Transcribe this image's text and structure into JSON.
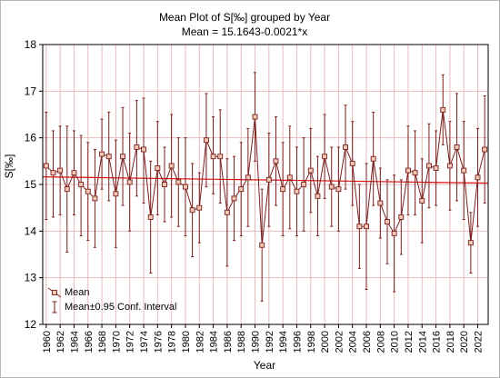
{
  "chart_data": {
    "type": "line",
    "title": "Mean Plot of S[‰] grouped by  Year",
    "subtitle": "Mean = 15.1643-0.0021*x",
    "xlabel": "Year",
    "ylabel": "S[‰]",
    "ylim": [
      12,
      18
    ],
    "yticks": [
      12,
      13,
      14,
      15,
      16,
      17,
      18
    ],
    "grid": true,
    "legend_placement": "bottom-left",
    "x_tick_labels": [
      "1960",
      "1962",
      "1964",
      "1966",
      "1968",
      "1970",
      "1972",
      "1974",
      "1976",
      "1978",
      "1980",
      "1982",
      "1984",
      "1986",
      "1988",
      "1990",
      "1992",
      "1994",
      "1996",
      "1998",
      "2000",
      "2002",
      "2004",
      "2006",
      "2008",
      "2010",
      "2012",
      "2014",
      "2016",
      "2018",
      "2020",
      "2022"
    ],
    "x": [
      1960,
      1961,
      1962,
      1963,
      1964,
      1965,
      1966,
      1967,
      1968,
      1969,
      1970,
      1971,
      1972,
      1973,
      1974,
      1975,
      1976,
      1977,
      1978,
      1979,
      1980,
      1981,
      1982,
      1983,
      1984,
      1985,
      1986,
      1987,
      1988,
      1989,
      1990,
      1991,
      1992,
      1993,
      1994,
      1995,
      1996,
      1997,
      1998,
      1999,
      2000,
      2001,
      2002,
      2003,
      2004,
      2005,
      2006,
      2007,
      2008,
      2009,
      2010,
      2011,
      2012,
      2013,
      2014,
      2015,
      2016,
      2017,
      2018,
      2019,
      2020,
      2021,
      2022,
      2023
    ],
    "series": [
      {
        "name": "Mean",
        "values": [
          15.4,
          15.25,
          15.3,
          14.9,
          15.25,
          15.0,
          14.85,
          14.7,
          15.65,
          15.6,
          14.8,
          15.6,
          15.05,
          15.8,
          15.75,
          14.3,
          15.35,
          15.0,
          15.4,
          15.05,
          14.95,
          14.45,
          14.5,
          15.95,
          15.6,
          15.6,
          14.4,
          14.7,
          14.9,
          15.15,
          16.45,
          13.7,
          15.1,
          15.5,
          14.9,
          15.15,
          14.85,
          15.0,
          15.3,
          14.75,
          15.6,
          14.95,
          14.9,
          15.8,
          15.45,
          14.1,
          14.1,
          15.55,
          14.6,
          14.2,
          13.95,
          14.3,
          15.3,
          15.25,
          14.65,
          15.4,
          15.35,
          16.6,
          15.4,
          15.8,
          15.3,
          13.75,
          15.15,
          15.75
        ],
        "lower": [
          14.25,
          14.3,
          14.35,
          13.55,
          14.35,
          13.9,
          13.8,
          13.65,
          14.9,
          14.65,
          13.65,
          14.55,
          14.0,
          14.75,
          14.6,
          13.1,
          14.35,
          14.2,
          14.3,
          14.1,
          13.9,
          13.45,
          13.75,
          14.95,
          14.8,
          14.6,
          13.25,
          13.8,
          13.9,
          14.1,
          15.5,
          12.5,
          14.1,
          14.55,
          13.9,
          14.05,
          13.9,
          14.0,
          14.4,
          13.9,
          14.7,
          14.1,
          14.0,
          14.9,
          14.55,
          13.2,
          12.75,
          14.55,
          13.85,
          13.3,
          12.7,
          13.5,
          14.35,
          14.35,
          13.75,
          14.5,
          14.55,
          15.85,
          14.45,
          14.65,
          14.25,
          13.1,
          14.1,
          14.6
        ],
        "upper": [
          16.55,
          16.15,
          16.25,
          16.25,
          16.15,
          16.05,
          15.9,
          15.75,
          16.4,
          16.55,
          15.95,
          16.65,
          16.1,
          16.8,
          16.85,
          15.5,
          16.35,
          15.8,
          16.5,
          16.0,
          16.0,
          15.45,
          15.25,
          16.95,
          16.45,
          16.6,
          15.55,
          15.6,
          15.9,
          16.2,
          17.4,
          14.9,
          16.1,
          16.45,
          15.9,
          16.25,
          15.8,
          16.0,
          16.2,
          15.6,
          16.5,
          15.8,
          15.8,
          16.7,
          16.35,
          15.0,
          15.45,
          16.55,
          15.35,
          15.1,
          15.2,
          15.1,
          16.25,
          16.15,
          15.55,
          16.3,
          16.15,
          17.35,
          16.35,
          16.95,
          16.35,
          14.4,
          16.2,
          16.9
        ]
      }
    ],
    "trend": {
      "intercept": 15.1643,
      "slope": -0.0021
    },
    "legend": [
      "Mean",
      "Mean±0.95 Conf. Interval"
    ],
    "colors": {
      "series": "#7a1f1f",
      "marker_fill": "#f1c8b4",
      "trend": "#e01010",
      "grid": "#e6bcbc",
      "plot_bg": "#ffffff"
    }
  }
}
